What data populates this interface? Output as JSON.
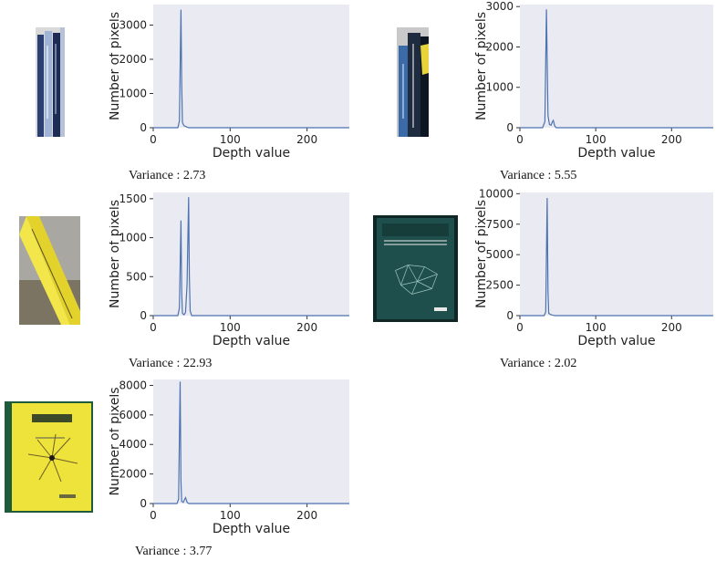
{
  "panels": [
    {
      "variance_label": "Variance :",
      "variance_value": "2.73",
      "thumb": {
        "name": "book-spines-blue",
        "colors": [
          "#d9d9d9",
          "#2b3f73",
          "#9fb4d6",
          "#1e2b55"
        ]
      },
      "chart_data": {
        "type": "line",
        "xlabel": "Depth value",
        "ylabel": "Number of pixels",
        "xlim": [
          0,
          255
        ],
        "ylim": [
          0,
          3600
        ],
        "xticks": [
          0,
          100,
          200
        ],
        "yticks": [
          0,
          1000,
          2000,
          3000
        ],
        "x": [
          0,
          32,
          34,
          36,
          37,
          38,
          40,
          42,
          44,
          46,
          255
        ],
        "y": [
          0,
          0,
          200,
          3450,
          1300,
          150,
          60,
          40,
          20,
          0,
          0
        ],
        "line_color": "#4c72b0",
        "background": "#eaeaf2"
      }
    },
    {
      "variance_label": "Variance :",
      "variance_value": "5.55",
      "thumb": {
        "name": "book-spines-dark",
        "colors": [
          "#c9c9c9",
          "#1f2c3f",
          "#3a6aa8",
          "#e8d43a"
        ]
      },
      "chart_data": {
        "type": "line",
        "xlabel": "Depth value",
        "ylabel": "Number of pixels",
        "xlim": [
          0,
          255
        ],
        "ylim": [
          0,
          3050
        ],
        "xticks": [
          0,
          100,
          200
        ],
        "yticks": [
          0,
          1000,
          2000,
          3000
        ],
        "x": [
          0,
          30,
          33,
          35,
          37,
          39,
          41,
          43,
          44,
          46,
          48,
          255
        ],
        "y": [
          0,
          0,
          150,
          2930,
          300,
          80,
          60,
          150,
          180,
          40,
          0,
          0
        ],
        "line_color": "#4c72b0",
        "background": "#eaeaf2"
      }
    },
    {
      "variance_label": "Variance :",
      "variance_value": "22.93",
      "thumb": {
        "name": "yellow-book-tilted",
        "colors": [
          "#a9a7a2",
          "#e2d22b",
          "#7b7462",
          "#f2e64a"
        ]
      },
      "chart_data": {
        "type": "line",
        "xlabel": "Depth value",
        "ylabel": "Number of pixels",
        "xlim": [
          0,
          255
        ],
        "ylim": [
          0,
          1580
        ],
        "xticks": [
          0,
          100,
          200
        ],
        "yticks": [
          0,
          500,
          1000,
          1500
        ],
        "x": [
          0,
          32,
          34,
          36,
          37,
          38,
          40,
          42,
          44,
          46,
          47,
          48,
          50,
          255
        ],
        "y": [
          0,
          0,
          100,
          1220,
          300,
          30,
          10,
          40,
          400,
          1520,
          500,
          60,
          0,
          0
        ],
        "line_color": "#4c72b0",
        "background": "#eaeaf2"
      }
    },
    {
      "variance_label": "Variance :",
      "variance_value": "2.02",
      "thumb": {
        "name": "green-book-cover",
        "colors": [
          "#1f4f4c",
          "#e8e8e8",
          "#9fc6c2",
          "#0c2f2d"
        ]
      },
      "chart_data": {
        "type": "line",
        "xlabel": "Depth value",
        "ylabel": "Number of pixels",
        "xlim": [
          0,
          255
        ],
        "ylim": [
          0,
          10100
        ],
        "xticks": [
          0,
          100,
          200
        ],
        "yticks": [
          0,
          2500,
          5000,
          7500,
          10000
        ],
        "x": [
          0,
          32,
          34,
          36,
          37,
          38,
          40,
          42,
          44,
          46,
          255
        ],
        "y": [
          0,
          0,
          300,
          9650,
          2000,
          200,
          100,
          60,
          20,
          0,
          0
        ],
        "line_color": "#4c72b0",
        "background": "#eaeaf2"
      }
    },
    {
      "variance_label": "Variance :",
      "variance_value": "3.77",
      "thumb": {
        "name": "yellow-book-cover",
        "colors": [
          "#ede33a",
          "#1e5a3c",
          "#6e5e28",
          "#1a1a1a"
        ]
      },
      "chart_data": {
        "type": "line",
        "xlabel": "Depth value",
        "ylabel": "Number of pixels",
        "xlim": [
          0,
          255
        ],
        "ylim": [
          0,
          8400
        ],
        "xticks": [
          0,
          100,
          200
        ],
        "yticks": [
          0,
          2000,
          4000,
          6000,
          8000
        ],
        "x": [
          0,
          31,
          33,
          35,
          36,
          37,
          39,
          41,
          42,
          43,
          44,
          46,
          255
        ],
        "y": [
          0,
          0,
          300,
          8250,
          1500,
          150,
          80,
          300,
          400,
          250,
          80,
          0,
          0
        ],
        "line_color": "#4c72b0",
        "background": "#eaeaf2"
      }
    }
  ]
}
